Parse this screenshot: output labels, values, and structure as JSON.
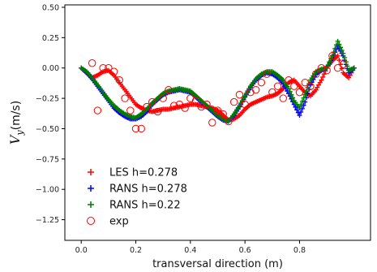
{
  "chart_data": {
    "type": "scatter",
    "xlabel": "transversal direction (m)",
    "ylabel": "V_y (m/s)",
    "ylabel_parts": {
      "symbol": "V",
      "subscript": "y",
      "unit": "(m/s)"
    },
    "xlim": [
      -0.06,
      1.06
    ],
    "ylim": [
      -1.42,
      0.52
    ],
    "xticks": [
      0.0,
      0.2,
      0.4,
      0.6,
      0.8
    ],
    "xtick_labels": [
      "0.0",
      "0.2",
      "0.4",
      "0.6",
      "0.8"
    ],
    "yticks": [
      0.5,
      0.25,
      0.0,
      -0.25,
      -0.5,
      -0.75,
      -1.0,
      -1.25
    ],
    "ytick_labels": [
      "0.50",
      "0.25",
      "0.00",
      "−0.25",
      "−0.50",
      "−0.75",
      "−1.00",
      "−1.25"
    ],
    "grid": false,
    "legend_position": "lower-left",
    "series": [
      {
        "name": "LES h=0.278",
        "marker": "plus",
        "color": "#ff0000",
        "x": [
          0.0,
          0.02,
          0.04,
          0.06,
          0.08,
          0.1,
          0.12,
          0.14,
          0.16,
          0.18,
          0.2,
          0.22,
          0.24,
          0.26,
          0.28,
          0.3,
          0.32,
          0.34,
          0.36,
          0.38,
          0.4,
          0.42,
          0.44,
          0.46,
          0.48,
          0.5,
          0.52,
          0.54,
          0.56,
          0.58,
          0.6,
          0.62,
          0.64,
          0.66,
          0.68,
          0.7,
          0.72,
          0.74,
          0.76,
          0.78,
          0.8,
          0.82,
          0.84,
          0.86,
          0.88,
          0.9,
          0.92,
          0.94,
          0.96,
          0.98,
          1.0
        ],
        "y": [
          0.0,
          -0.04,
          -0.08,
          -0.06,
          -0.03,
          -0.02,
          -0.06,
          -0.12,
          -0.18,
          -0.24,
          -0.3,
          -0.33,
          -0.35,
          -0.36,
          -0.35,
          -0.34,
          -0.34,
          -0.33,
          -0.32,
          -0.31,
          -0.3,
          -0.3,
          -0.31,
          -0.32,
          -0.33,
          -0.35,
          -0.39,
          -0.43,
          -0.42,
          -0.39,
          -0.34,
          -0.3,
          -0.28,
          -0.26,
          -0.24,
          -0.23,
          -0.21,
          -0.17,
          -0.12,
          -0.1,
          -0.15,
          -0.2,
          -0.23,
          -0.18,
          -0.1,
          0.0,
          0.06,
          0.1,
          -0.04,
          -0.08,
          0.0
        ]
      },
      {
        "name": "RANS h=0.278",
        "marker": "plus",
        "color": "#0000ff",
        "x": [
          0.0,
          0.02,
          0.04,
          0.06,
          0.08,
          0.1,
          0.12,
          0.14,
          0.16,
          0.18,
          0.2,
          0.22,
          0.24,
          0.26,
          0.28,
          0.3,
          0.32,
          0.34,
          0.36,
          0.38,
          0.4,
          0.42,
          0.44,
          0.46,
          0.48,
          0.5,
          0.52,
          0.54,
          0.56,
          0.58,
          0.6,
          0.62,
          0.64,
          0.66,
          0.68,
          0.7,
          0.72,
          0.74,
          0.76,
          0.78,
          0.8,
          0.82,
          0.84,
          0.86,
          0.88,
          0.9,
          0.92,
          0.94,
          0.96,
          0.98,
          1.0
        ],
        "y": [
          0.0,
          -0.04,
          -0.09,
          -0.15,
          -0.21,
          -0.27,
          -0.33,
          -0.37,
          -0.4,
          -0.42,
          -0.42,
          -0.4,
          -0.36,
          -0.3,
          -0.26,
          -0.22,
          -0.2,
          -0.19,
          -0.18,
          -0.19,
          -0.2,
          -0.24,
          -0.28,
          -0.32,
          -0.36,
          -0.4,
          -0.43,
          -0.44,
          -0.39,
          -0.32,
          -0.24,
          -0.16,
          -0.1,
          -0.06,
          -0.04,
          -0.05,
          -0.08,
          -0.13,
          -0.21,
          -0.3,
          -0.39,
          -0.28,
          -0.14,
          -0.05,
          -0.02,
          0.0,
          0.08,
          0.18,
          0.1,
          -0.04,
          0.0
        ]
      },
      {
        "name": "RANS h=0.22",
        "marker": "plus",
        "color": "#007a00",
        "x": [
          0.0,
          0.02,
          0.04,
          0.06,
          0.08,
          0.1,
          0.12,
          0.14,
          0.16,
          0.18,
          0.2,
          0.22,
          0.24,
          0.26,
          0.28,
          0.3,
          0.32,
          0.34,
          0.36,
          0.38,
          0.4,
          0.42,
          0.44,
          0.46,
          0.48,
          0.5,
          0.52,
          0.54,
          0.56,
          0.58,
          0.6,
          0.62,
          0.64,
          0.66,
          0.68,
          0.7,
          0.72,
          0.74,
          0.76,
          0.78,
          0.8,
          0.82,
          0.84,
          0.86,
          0.88,
          0.9,
          0.92,
          0.94,
          0.96,
          0.98,
          1.0
        ],
        "y": [
          0.0,
          -0.03,
          -0.08,
          -0.14,
          -0.2,
          -0.26,
          -0.31,
          -0.35,
          -0.38,
          -0.4,
          -0.41,
          -0.38,
          -0.34,
          -0.29,
          -0.25,
          -0.21,
          -0.19,
          -0.18,
          -0.17,
          -0.18,
          -0.19,
          -0.23,
          -0.27,
          -0.31,
          -0.35,
          -0.39,
          -0.42,
          -0.44,
          -0.38,
          -0.31,
          -0.23,
          -0.15,
          -0.09,
          -0.05,
          -0.03,
          -0.03,
          -0.06,
          -0.1,
          -0.17,
          -0.27,
          -0.33,
          -0.22,
          -0.1,
          -0.03,
          -0.01,
          0.0,
          0.1,
          0.22,
          0.12,
          -0.02,
          0.0
        ]
      },
      {
        "name": "exp",
        "marker": "circle",
        "color": "#ff0000",
        "x": [
          0.04,
          0.06,
          0.08,
          0.1,
          0.12,
          0.14,
          0.16,
          0.18,
          0.2,
          0.22,
          0.24,
          0.26,
          0.28,
          0.3,
          0.32,
          0.34,
          0.36,
          0.38,
          0.4,
          0.42,
          0.44,
          0.46,
          0.48,
          0.5,
          0.52,
          0.54,
          0.56,
          0.58,
          0.6,
          0.62,
          0.64,
          0.66,
          0.68,
          0.7,
          0.72,
          0.74,
          0.76,
          0.78,
          0.8,
          0.82,
          0.84,
          0.86,
          0.88,
          0.9,
          0.92,
          0.94,
          0.96
        ],
        "y": [
          0.04,
          -0.35,
          0.0,
          0.0,
          -0.03,
          -0.1,
          -0.25,
          -0.35,
          -0.5,
          -0.5,
          -0.32,
          -0.28,
          -0.36,
          -0.25,
          -0.18,
          -0.31,
          -0.3,
          -0.33,
          -0.25,
          -0.27,
          -0.32,
          -0.3,
          -0.45,
          -0.35,
          -0.38,
          -0.44,
          -0.28,
          -0.22,
          -0.3,
          -0.2,
          -0.18,
          -0.12,
          -0.05,
          -0.2,
          -0.15,
          -0.25,
          -0.1,
          -0.15,
          -0.2,
          -0.12,
          -0.15,
          -0.05,
          0.0,
          -0.02,
          0.1,
          0.0,
          0.03
        ]
      }
    ]
  }
}
